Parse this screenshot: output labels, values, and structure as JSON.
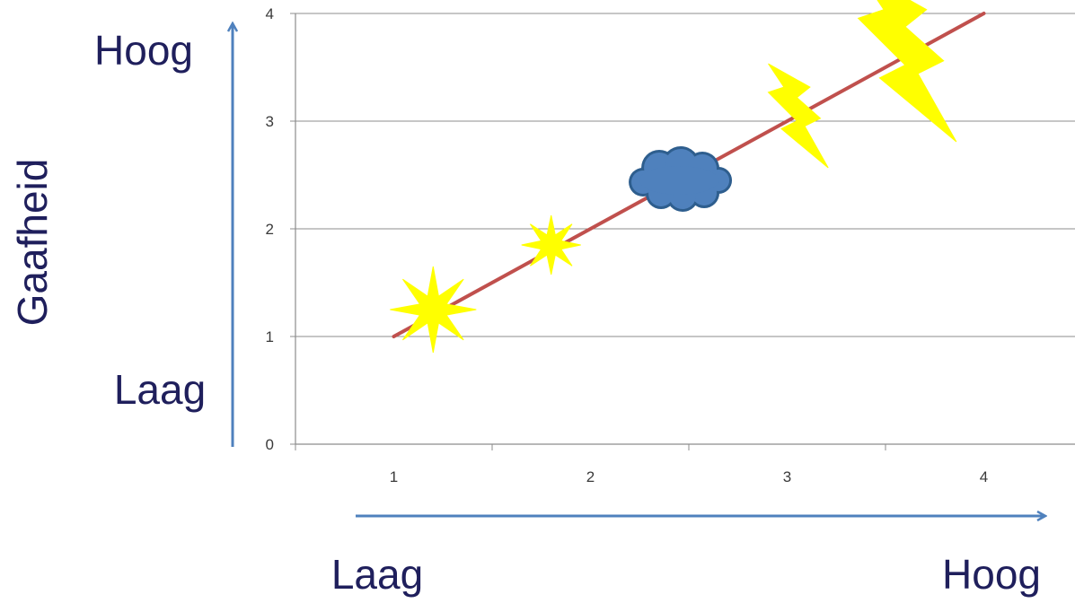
{
  "labels": {
    "y_axis_title": "Gaafheid",
    "y_high": "Hoog",
    "y_low": "Laag",
    "x_low": "Laag",
    "x_high": "Hoog"
  },
  "colors": {
    "line": "#c0504d",
    "arrow": "#4f81bd",
    "grid": "#8c8c8c",
    "star": "#ffff00",
    "cloud_fill": "#4f81bd",
    "cloud_stroke": "#2e5e8e",
    "label_text": "#1f1f5c"
  },
  "chart_data": {
    "type": "line",
    "categories": [
      "1",
      "2",
      "3",
      "4"
    ],
    "x": [
      1,
      2,
      3,
      4
    ],
    "series": [
      {
        "values": [
          1,
          2,
          3,
          4
        ]
      }
    ],
    "yticks": [
      "0",
      "1",
      "2",
      "3",
      "4"
    ],
    "ylim": [
      0,
      4
    ],
    "xlim": [
      0.5,
      4.5
    ],
    "grid": true,
    "legend": "none",
    "markers": [
      {
        "icon": "star-icon",
        "x": 1.2,
        "y": 1.25
      },
      {
        "icon": "star-icon",
        "x": 1.8,
        "y": 1.85
      },
      {
        "icon": "cloud-icon",
        "x": 2.45,
        "y": 2.45
      },
      {
        "icon": "lightning-icon",
        "x": 3.05,
        "y": 3.05
      },
      {
        "icon": "lightning-icon",
        "x": 3.6,
        "y": 3.6
      }
    ]
  }
}
